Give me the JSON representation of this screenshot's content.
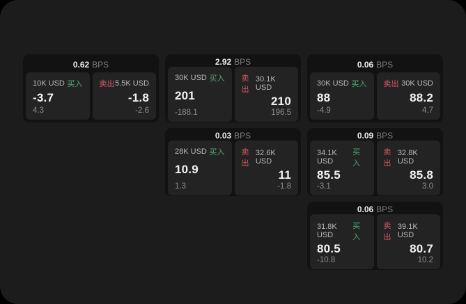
{
  "labels": {
    "bps_unit": "BPS",
    "buy": "买入",
    "sell": "卖出"
  },
  "colors": {
    "buy_accent": "#4fa873",
    "sell_accent": "#d75566",
    "window_surface": "#1c1c1c",
    "card_surface": "#121212",
    "panel_surface": "#232323"
  },
  "cards": [
    {
      "bps": "0.62",
      "buy": {
        "size": "10K USD",
        "price": "-3.7",
        "delta": "4.3"
      },
      "sell": {
        "size": "5.5K USD",
        "price": "-1.8",
        "delta": "-2.6"
      }
    },
    {
      "bps": "2.92",
      "buy": {
        "size": "30K USD",
        "price": "201",
        "delta": "-188.1"
      },
      "sell": {
        "size": "30.1K USD",
        "price": "210",
        "delta": "196.5"
      }
    },
    {
      "bps": "0.06",
      "buy": {
        "size": "30K USD",
        "price": "88",
        "delta": "-4.9"
      },
      "sell": {
        "size": "30K USD",
        "price": "88.2",
        "delta": "4.7"
      }
    },
    {
      "bps": "0.03",
      "buy": {
        "size": "28K USD",
        "price": "10.9",
        "delta": "1.3"
      },
      "sell": {
        "size": "32.6K USD",
        "price": "11",
        "delta": "-1.8"
      }
    },
    {
      "bps": "0.09",
      "buy": {
        "size": "34.1K USD",
        "price": "85.5",
        "delta": "-3.1"
      },
      "sell": {
        "size": "32.8K USD",
        "price": "85.8",
        "delta": "3.0"
      }
    },
    {
      "bps": "0.06",
      "buy": {
        "size": "31.8K USD",
        "price": "80.5",
        "delta": "-10.8"
      },
      "sell": {
        "size": "39.1K USD",
        "price": "80.7",
        "delta": "10.2"
      }
    }
  ]
}
